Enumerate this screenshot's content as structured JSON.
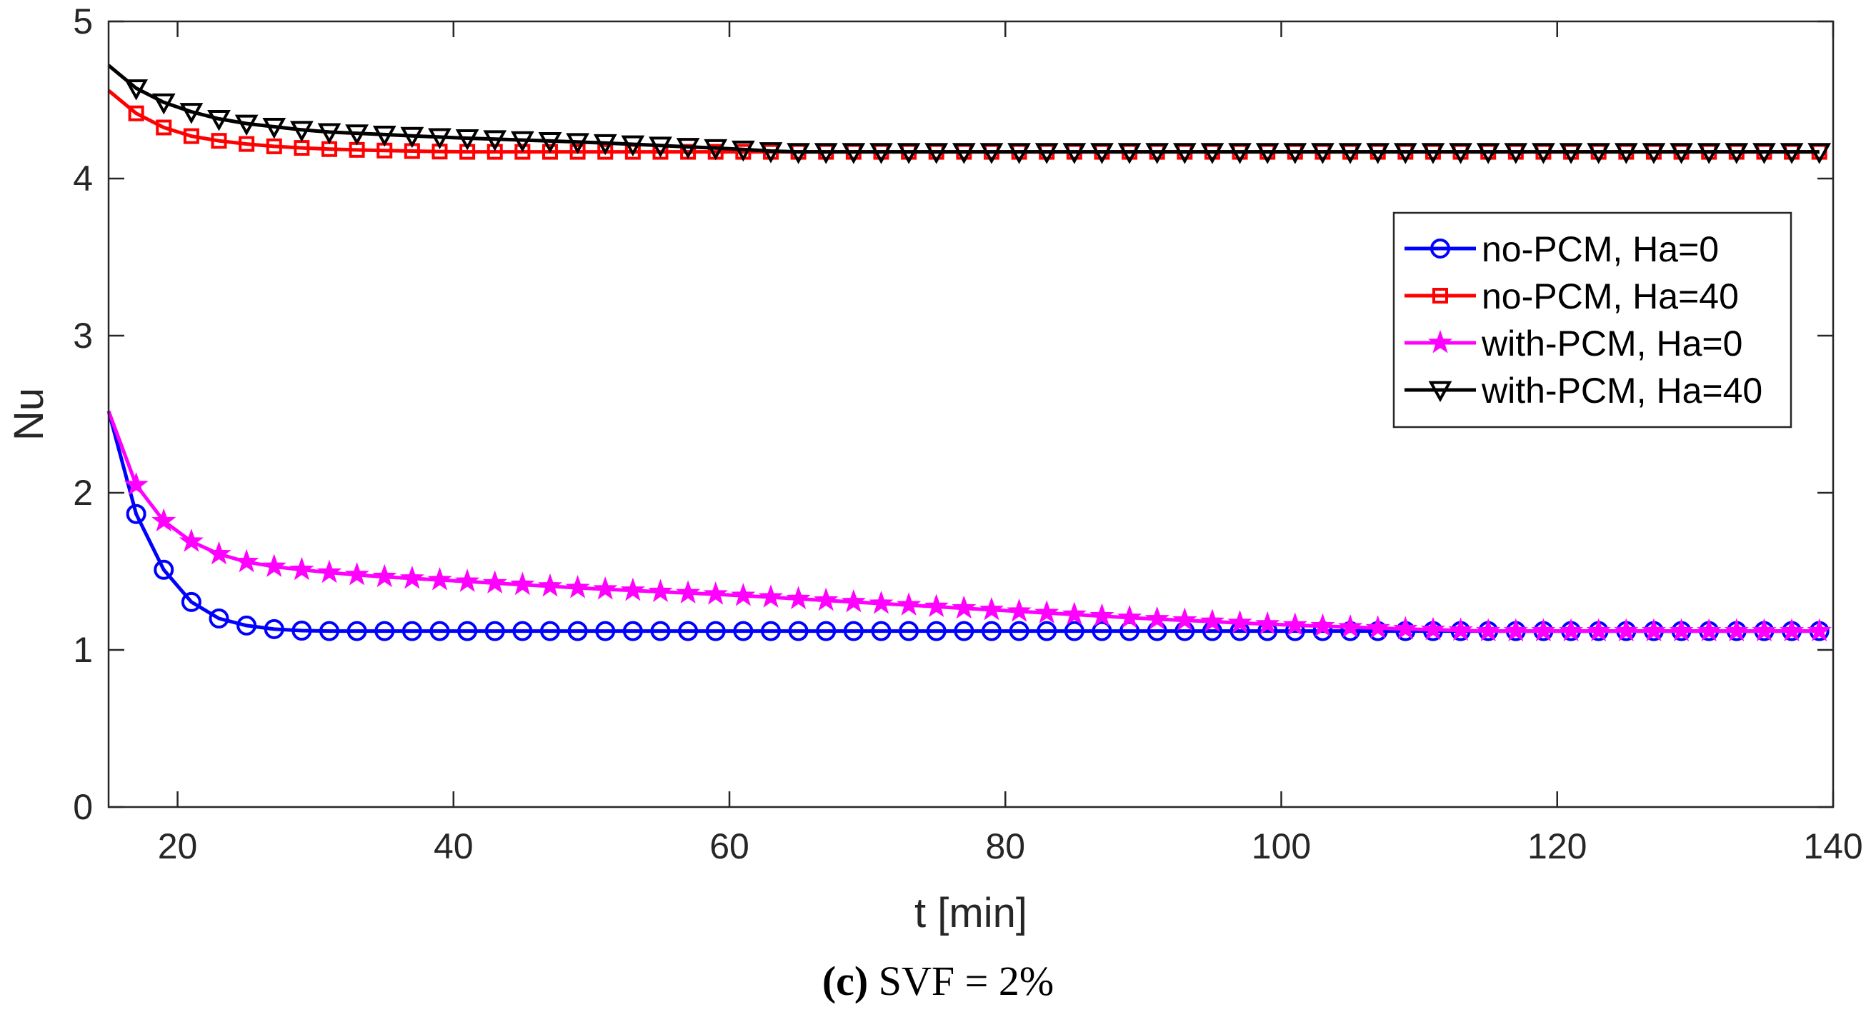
{
  "chart_data": {
    "type": "line",
    "xlabel": "t [min]",
    "ylabel": "Nu",
    "xlim": [
      15,
      140
    ],
    "ylim": [
      0,
      5
    ],
    "xticks": [
      20,
      40,
      60,
      80,
      100,
      120,
      140
    ],
    "yticks": [
      0,
      1,
      2,
      3,
      4,
      5
    ],
    "legend_position": "top-right",
    "x_start": 15,
    "x_step": 2,
    "x_end": 140,
    "series": [
      {
        "name": "no-PCM, Ha=0",
        "color": "#0000FF",
        "marker": "circle",
        "start": 2.52,
        "points": [
          [
            15,
            2.52
          ],
          [
            16,
            2.09
          ],
          [
            18,
            1.64
          ],
          [
            20,
            1.38
          ],
          [
            22,
            1.23
          ],
          [
            24,
            1.17
          ],
          [
            26,
            1.14
          ],
          [
            28,
            1.125
          ],
          [
            30,
            1.12
          ]
        ],
        "end_value": 1.12
      },
      {
        "name": "no-PCM, Ha=40",
        "color": "#FF0000",
        "marker": "square",
        "start": 4.56,
        "points": [
          [
            15,
            4.56
          ],
          [
            16,
            4.47
          ],
          [
            18,
            4.36
          ],
          [
            20,
            4.29
          ],
          [
            22,
            4.25
          ],
          [
            24,
            4.23
          ],
          [
            26,
            4.21
          ],
          [
            28,
            4.2
          ],
          [
            30,
            4.19
          ],
          [
            34,
            4.18
          ],
          [
            40,
            4.17
          ],
          [
            60,
            4.17
          ],
          [
            140,
            4.17
          ]
        ],
        "end_value": 4.17
      },
      {
        "name": "with-PCM, Ha=0",
        "color": "#FF00FF",
        "marker": "star",
        "start": 2.52,
        "points": [
          [
            15,
            2.52
          ],
          [
            16,
            2.2
          ],
          [
            18,
            1.9
          ],
          [
            20,
            1.74
          ],
          [
            22,
            1.64
          ],
          [
            24,
            1.58
          ],
          [
            26,
            1.54
          ],
          [
            28,
            1.52
          ],
          [
            30,
            1.5
          ],
          [
            34,
            1.47
          ],
          [
            40,
            1.44
          ],
          [
            50,
            1.39
          ],
          [
            60,
            1.35
          ],
          [
            70,
            1.3
          ],
          [
            80,
            1.25
          ],
          [
            90,
            1.2
          ],
          [
            100,
            1.16
          ],
          [
            110,
            1.13
          ],
          [
            115,
            1.12
          ],
          [
            140,
            1.12
          ]
        ],
        "end_value": 1.12
      },
      {
        "name": "with-PCM, Ha=40",
        "color": "#000000",
        "marker": "triangle-down",
        "start": 4.72,
        "points": [
          [
            15,
            4.72
          ],
          [
            16,
            4.63
          ],
          [
            18,
            4.52
          ],
          [
            20,
            4.45
          ],
          [
            22,
            4.4
          ],
          [
            24,
            4.36
          ],
          [
            26,
            4.34
          ],
          [
            28,
            4.32
          ],
          [
            30,
            4.3
          ],
          [
            35,
            4.28
          ],
          [
            40,
            4.26
          ],
          [
            50,
            4.23
          ],
          [
            55,
            4.21
          ],
          [
            60,
            4.19
          ],
          [
            64,
            4.17
          ],
          [
            140,
            4.17
          ]
        ],
        "end_value": 4.17
      }
    ]
  },
  "caption": {
    "label": "(c)",
    "text": " SVF = 2%"
  }
}
